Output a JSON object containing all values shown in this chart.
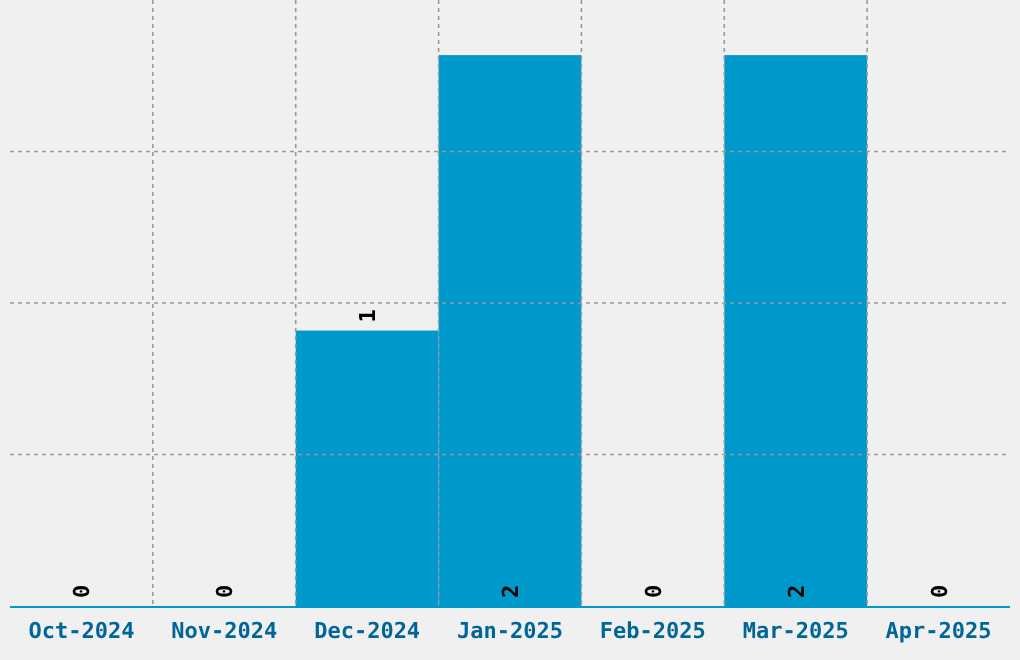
{
  "chart_data": {
    "type": "bar",
    "categories": [
      "Oct-2024",
      "Nov-2024",
      "Dec-2024",
      "Jan-2025",
      "Feb-2025",
      "Mar-2025",
      "Apr-2025"
    ],
    "values": [
      0,
      0,
      1,
      2,
      0,
      2,
      0
    ],
    "color": "#0099cc",
    "ylim": [
      0,
      2.2
    ],
    "yticks": [
      {
        "value": 0.55,
        "label": null
      },
      {
        "value": 1.1,
        "label": null
      },
      {
        "value": 1.65,
        "label": null
      }
    ],
    "grid": true,
    "data_labels": true,
    "tick_labels": "x"
  }
}
